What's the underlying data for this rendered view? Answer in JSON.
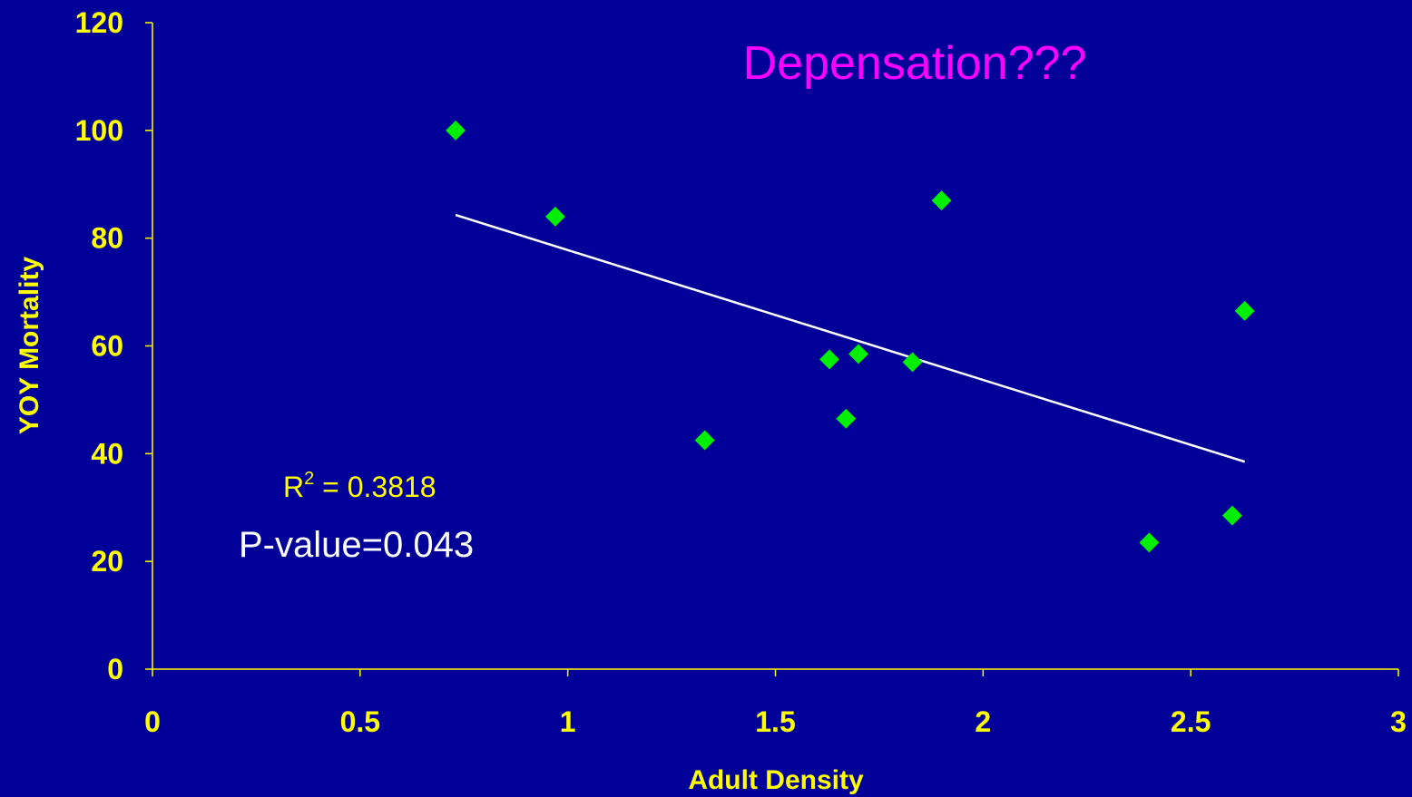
{
  "chart_data": {
    "type": "scatter",
    "title": "Depensation???",
    "xlabel": "Adult Density",
    "ylabel": "YOY Mortality",
    "xlim": [
      0,
      3
    ],
    "ylim": [
      0,
      120
    ],
    "x_ticks": [
      "0",
      "0.5",
      "1",
      "1.5",
      "2",
      "2.5",
      "3"
    ],
    "y_ticks": [
      "0",
      "20",
      "40",
      "60",
      "80",
      "100",
      "120"
    ],
    "points": [
      {
        "x": 0.73,
        "y": 100
      },
      {
        "x": 0.97,
        "y": 84
      },
      {
        "x": 1.33,
        "y": 42.5
      },
      {
        "x": 1.63,
        "y": 57.5
      },
      {
        "x": 1.67,
        "y": 46.5
      },
      {
        "x": 1.7,
        "y": 58.5
      },
      {
        "x": 1.83,
        "y": 57
      },
      {
        "x": 1.9,
        "y": 87
      },
      {
        "x": 2.4,
        "y": 23.5
      },
      {
        "x": 2.6,
        "y": 28.5
      },
      {
        "x": 2.63,
        "y": 66.5
      }
    ],
    "trendline": {
      "x1": 0.73,
      "y1": 84.3,
      "x2": 2.63,
      "y2": 38.5
    },
    "r2_label": "R",
    "r2_sup": "2",
    "r2_value": " = 0.3818",
    "p_value": "P-value=0.043",
    "colors": {
      "background": "#000099",
      "axis": "#ffff00",
      "tick_text": "#ffff00",
      "title": "#ff00ff",
      "points": "#00ee00",
      "trendline": "#ffffff",
      "r2_text": "#ffff00",
      "p_text": "#ffffff"
    }
  }
}
